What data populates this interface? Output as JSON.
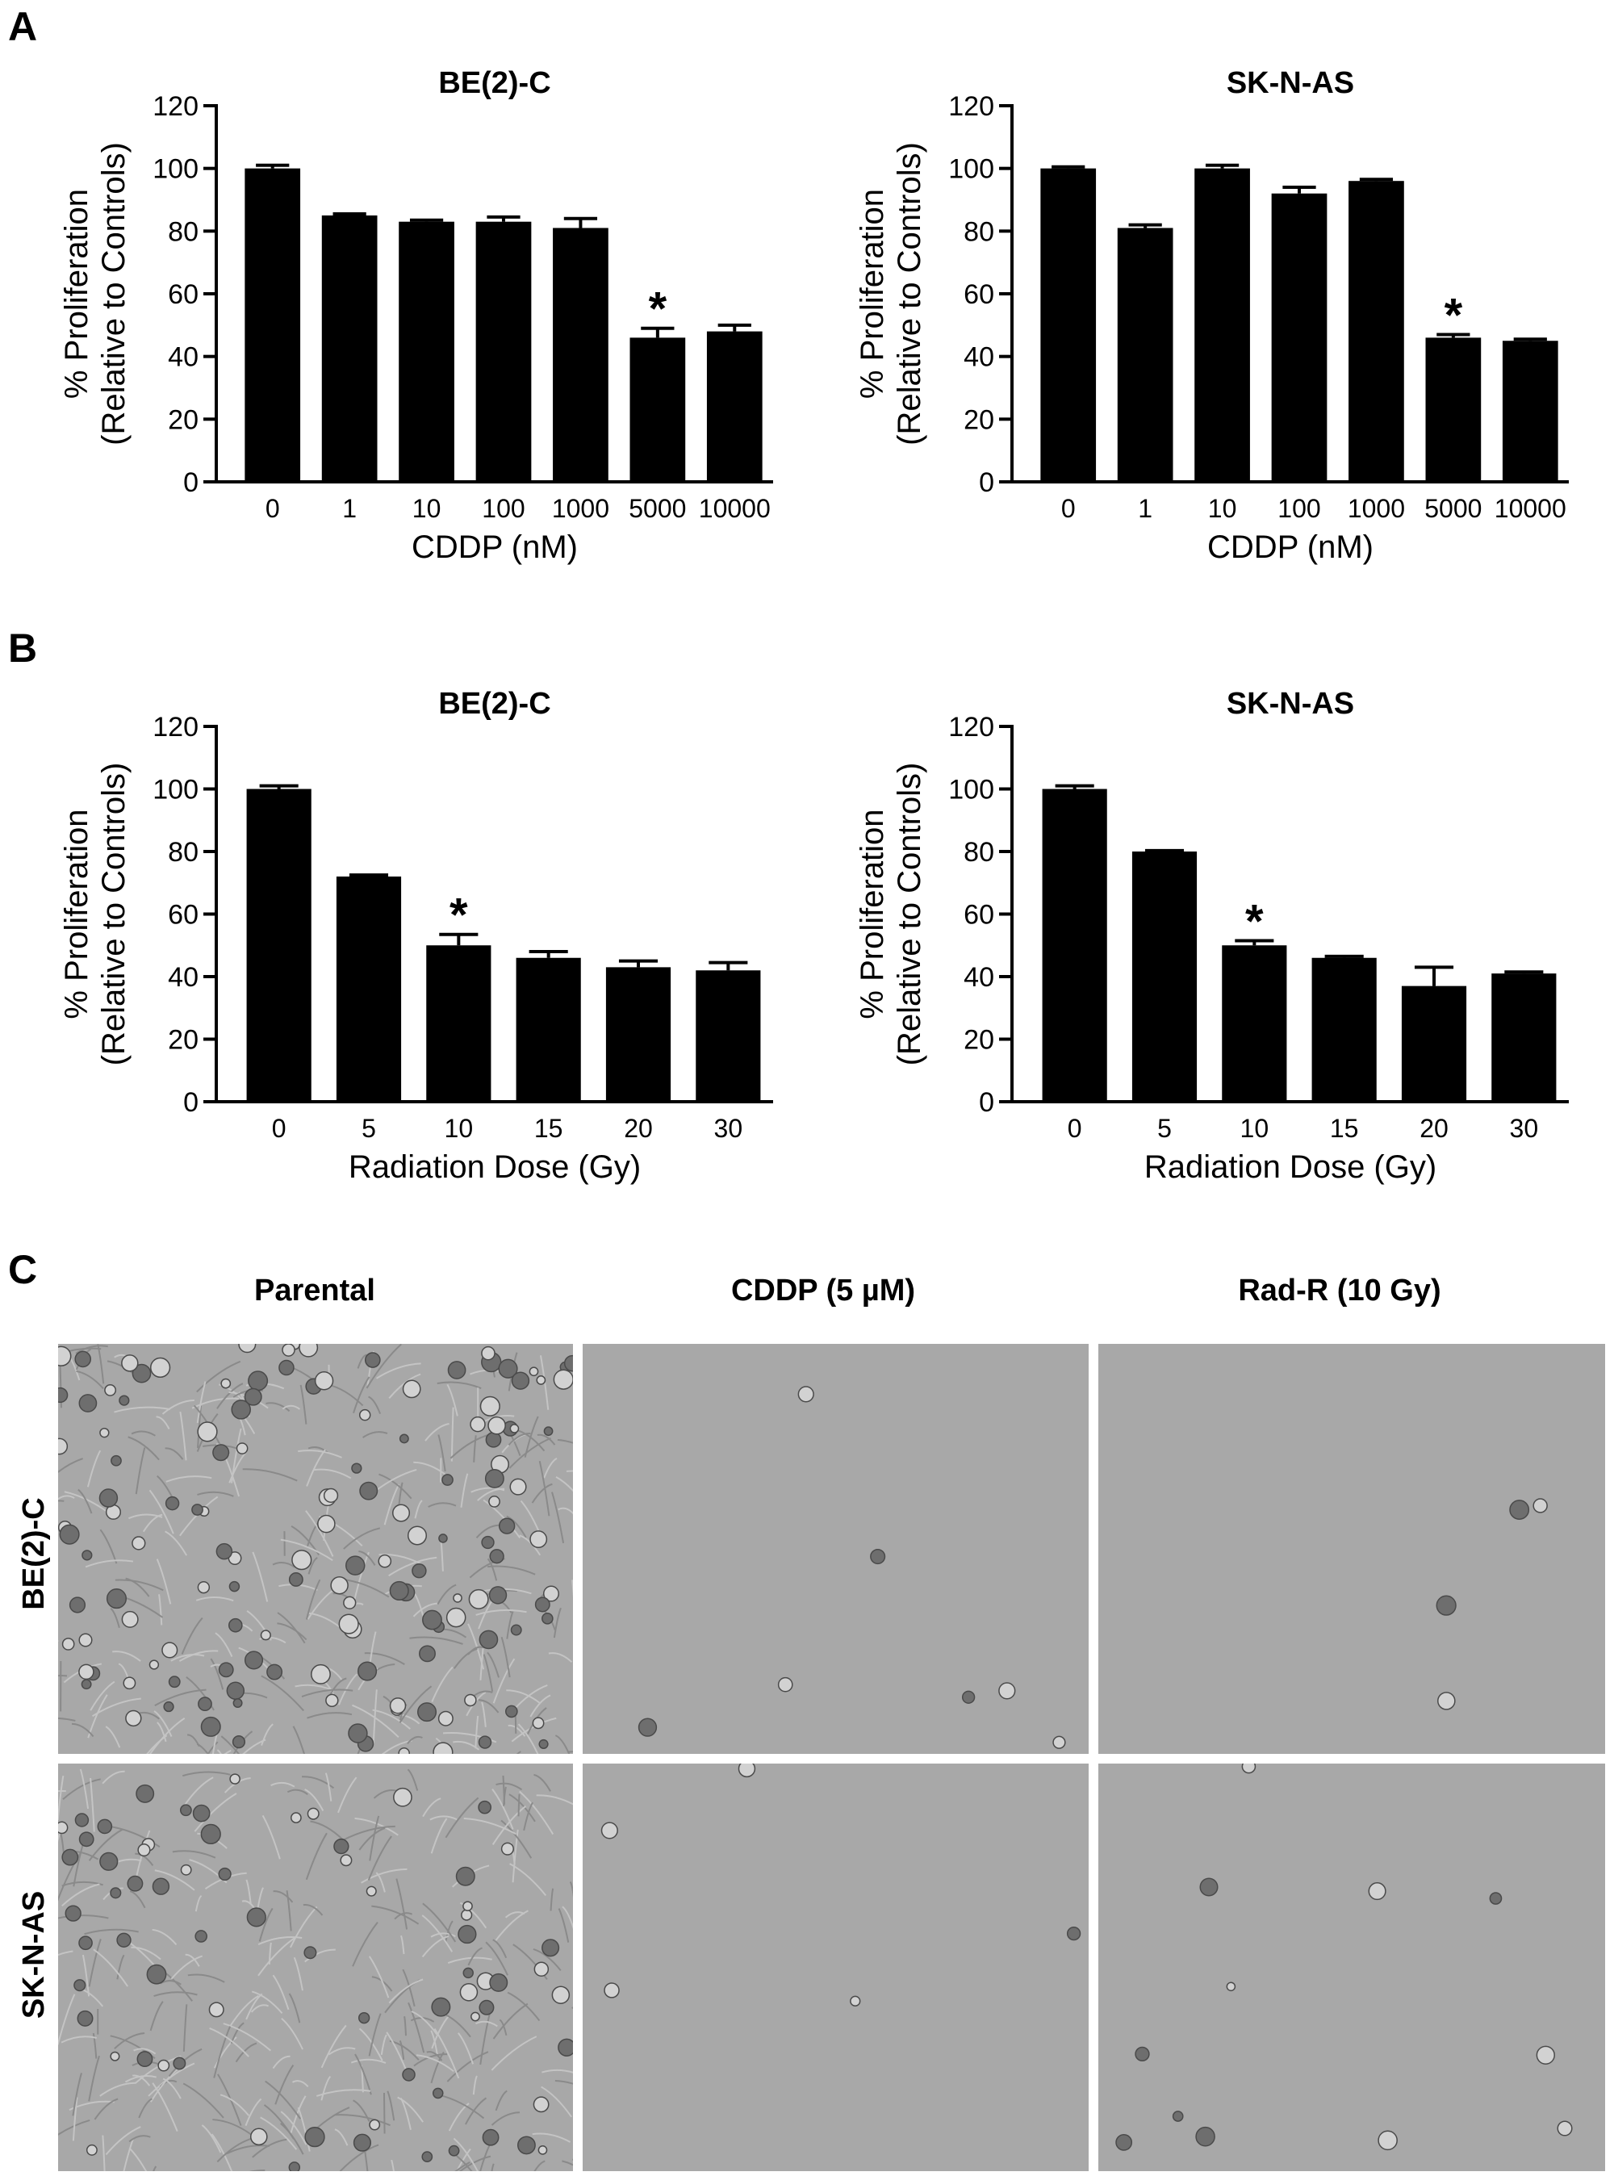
{
  "panel_labels": {
    "a": "A",
    "b": "B",
    "c": "C"
  },
  "chart_data": [
    {
      "type": "bar",
      "title": "BE(2)-C",
      "xlabel": "CDDP (nM)",
      "ylabel": [
        "% Proliferation",
        "(Relative to Controls)"
      ],
      "categories": [
        "0",
        "1",
        "10",
        "100",
        "1000",
        "5000",
        "10000"
      ],
      "values": [
        100,
        85,
        83,
        83,
        81,
        46,
        48
      ],
      "errors": [
        1,
        0.5,
        0.5,
        1.5,
        3,
        3,
        2
      ],
      "significant": [
        "5000"
      ],
      "significance_marker": "*",
      "ylim": [
        0,
        120
      ],
      "yticks": [
        "0",
        "20",
        "40",
        "60",
        "80",
        "100",
        "120"
      ],
      "bar_color": "#000000"
    },
    {
      "type": "bar",
      "title": "SK-N-AS",
      "xlabel": "CDDP (nM)",
      "ylabel": [
        "% Proliferation",
        "(Relative to Controls)"
      ],
      "categories": [
        "0",
        "1",
        "10",
        "100",
        "1000",
        "5000",
        "10000"
      ],
      "values": [
        100,
        81,
        100,
        92,
        96,
        46,
        45
      ],
      "errors": [
        0.5,
        1,
        1,
        2,
        0.5,
        1,
        0.5
      ],
      "significant": [
        "5000"
      ],
      "significance_marker": "*",
      "ylim": [
        0,
        120
      ],
      "yticks": [
        "0",
        "20",
        "40",
        "60",
        "80",
        "100",
        "120"
      ],
      "bar_color": "#000000"
    },
    {
      "type": "bar",
      "title": "BE(2)-C",
      "xlabel": "Radiation Dose (Gy)",
      "ylabel": [
        "% Proliferation",
        "(Relative to Controls)"
      ],
      "categories": [
        "0",
        "5",
        "10",
        "15",
        "20",
        "30"
      ],
      "values": [
        100,
        72,
        50,
        46,
        43,
        42
      ],
      "errors": [
        1,
        0.5,
        3.5,
        2,
        2,
        2.5
      ],
      "significant": [
        "10"
      ],
      "significance_marker": "*",
      "ylim": [
        0,
        120
      ],
      "yticks": [
        "0",
        "20",
        "40",
        "60",
        "80",
        "100",
        "120"
      ],
      "bar_color": "#000000"
    },
    {
      "type": "bar",
      "title": "SK-N-AS",
      "xlabel": "Radiation Dose (Gy)",
      "ylabel": [
        "% Proliferation",
        "(Relative to Controls)"
      ],
      "categories": [
        "0",
        "5",
        "10",
        "15",
        "20",
        "30"
      ],
      "values": [
        100,
        80,
        50,
        46,
        37,
        41
      ],
      "errors": [
        1,
        0.3,
        1.5,
        0.5,
        6,
        0.5
      ],
      "significant": [
        "10"
      ],
      "significance_marker": "*",
      "ylim": [
        0,
        120
      ],
      "yticks": [
        "0",
        "20",
        "40",
        "60",
        "80",
        "100",
        "120"
      ],
      "bar_color": "#000000"
    }
  ],
  "micrographs": {
    "columns": [
      "Parental",
      "CDDP (5 µM)",
      "Rad-R (10 Gy)"
    ],
    "rows": [
      "BE(2)-C",
      "SK-N-AS"
    ],
    "background_color": "#a8a8a8"
  }
}
